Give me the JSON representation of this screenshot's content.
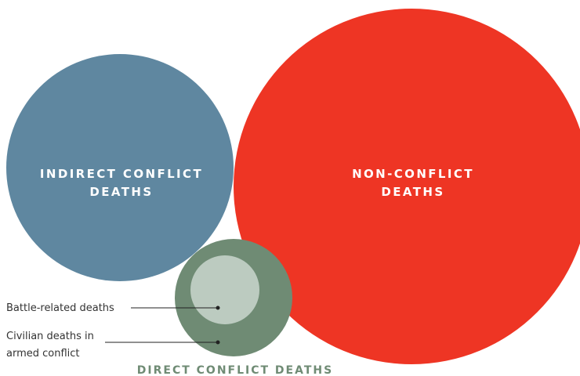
{
  "circles": [
    {
      "label": [
        "INDIRECT CONFLICT",
        "DEATHS"
      ]
    },
    {
      "label": [
        "NON-CONFLICT",
        "DEATHS"
      ]
    },
    {
      "label": [
        "DIRECT CONFLICT DEATHS"
      ]
    }
  ],
  "callouts": [
    {
      "label": [
        "Battle-related deaths"
      ]
    },
    {
      "label": [
        "Civilian deaths in",
        "armed conflict"
      ]
    }
  ]
}
